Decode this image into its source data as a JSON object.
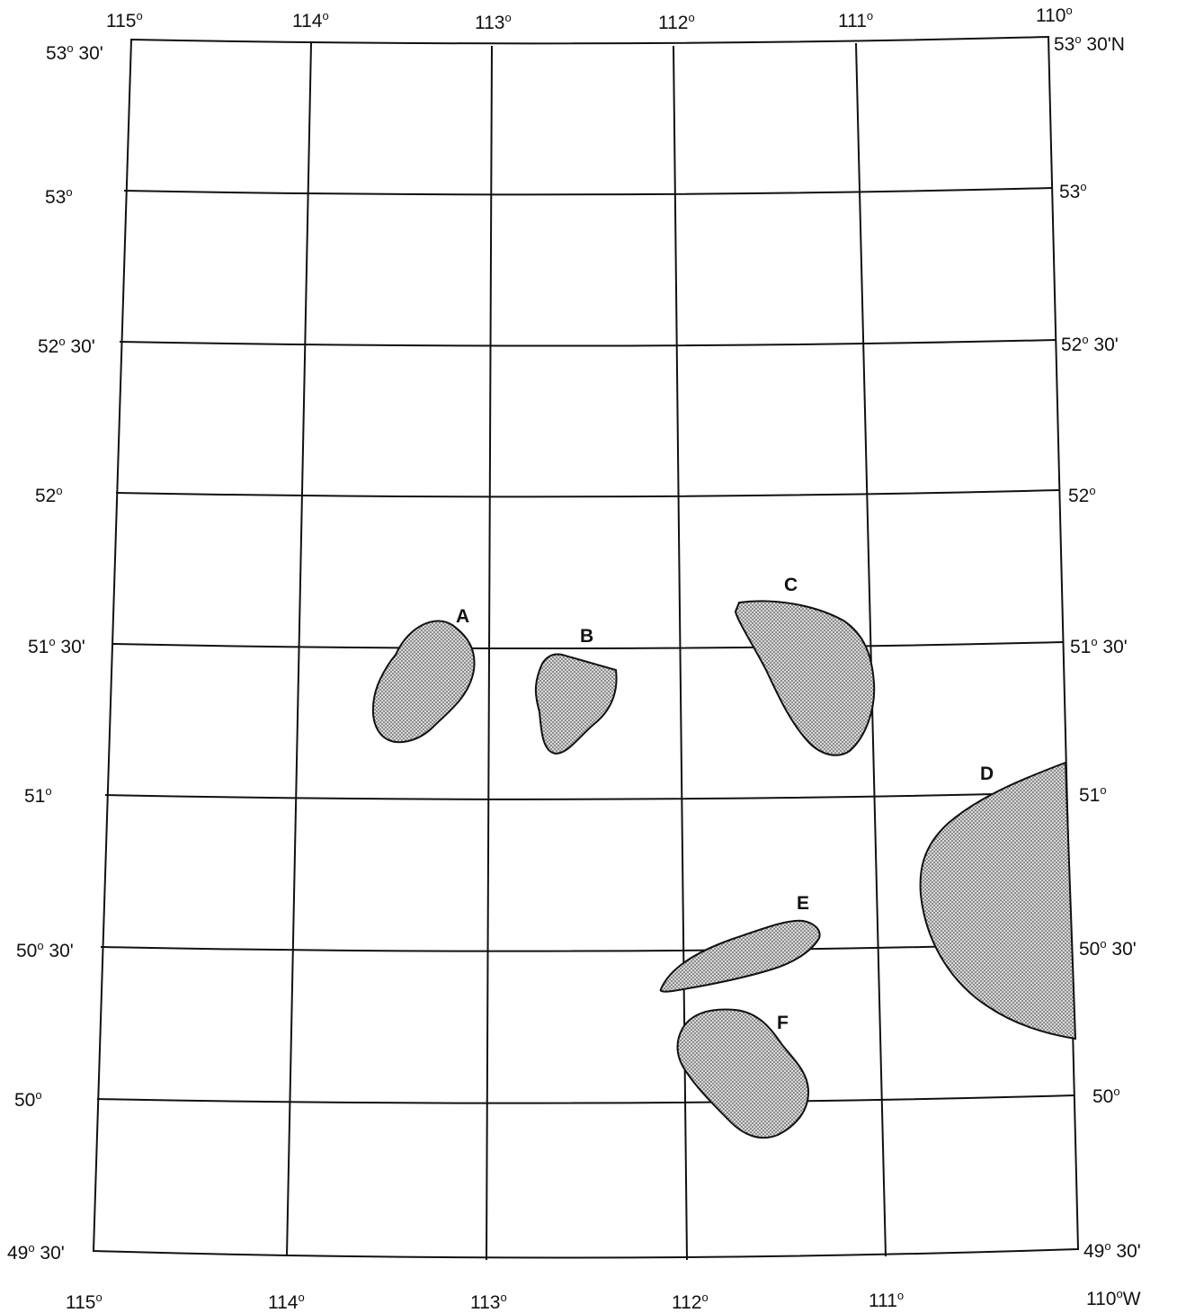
{
  "map": {
    "top_lon_labels": [
      {
        "deg": "115",
        "sym": "o",
        "suffix": ""
      },
      {
        "deg": "114",
        "sym": "o",
        "suffix": ""
      },
      {
        "deg": "113",
        "sym": "o",
        "suffix": ""
      },
      {
        "deg": "112",
        "sym": "o",
        "suffix": ""
      },
      {
        "deg": "111",
        "sym": "o",
        "suffix": ""
      },
      {
        "deg": "110",
        "sym": "o",
        "suffix": ""
      }
    ],
    "bottom_lon_labels": [
      {
        "deg": "115",
        "sym": "o",
        "suffix": ""
      },
      {
        "deg": "114",
        "sym": "o",
        "suffix": ""
      },
      {
        "deg": "113",
        "sym": "o",
        "suffix": ""
      },
      {
        "deg": "112",
        "sym": "o",
        "suffix": ""
      },
      {
        "deg": "111",
        "sym": "o",
        "suffix": ""
      },
      {
        "deg": "110",
        "sym": "o",
        "suffix": "W"
      }
    ],
    "left_lat_labels": [
      {
        "deg": "53",
        "sym": "o",
        "suffix": " 30'"
      },
      {
        "deg": "53",
        "sym": "o",
        "suffix": ""
      },
      {
        "deg": "52",
        "sym": "o",
        "suffix": " 30'"
      },
      {
        "deg": "52",
        "sym": "o",
        "suffix": ""
      },
      {
        "deg": "51",
        "sym": "o",
        "suffix": " 30'"
      },
      {
        "deg": "51",
        "sym": "o",
        "suffix": ""
      },
      {
        "deg": "50",
        "sym": "o",
        "suffix": " 30'"
      },
      {
        "deg": "50",
        "sym": "o",
        "suffix": ""
      },
      {
        "deg": "49",
        "sym": "o",
        "suffix": " 30'"
      }
    ],
    "right_lat_labels": [
      {
        "deg": "53",
        "sym": "o",
        "suffix": " 30'N"
      },
      {
        "deg": "53",
        "sym": "o",
        "suffix": ""
      },
      {
        "deg": "52",
        "sym": "o",
        "suffix": " 30'"
      },
      {
        "deg": "52",
        "sym": "o",
        "suffix": ""
      },
      {
        "deg": "51",
        "sym": "o",
        "suffix": " 30'"
      },
      {
        "deg": "51",
        "sym": "o",
        "suffix": ""
      },
      {
        "deg": "50",
        "sym": "o",
        "suffix": " 30'"
      },
      {
        "deg": "50",
        "sym": "o",
        "suffix": ""
      },
      {
        "deg": "49",
        "sym": "o",
        "suffix": " 30'"
      }
    ],
    "regions": [
      {
        "label": "A"
      },
      {
        "label": "B"
      },
      {
        "label": "C"
      },
      {
        "label": "D"
      },
      {
        "label": "E"
      },
      {
        "label": "F"
      }
    ],
    "colors": {
      "line": "#111111",
      "region_fill": "#d9d9d9",
      "dot": "#555555"
    }
  }
}
